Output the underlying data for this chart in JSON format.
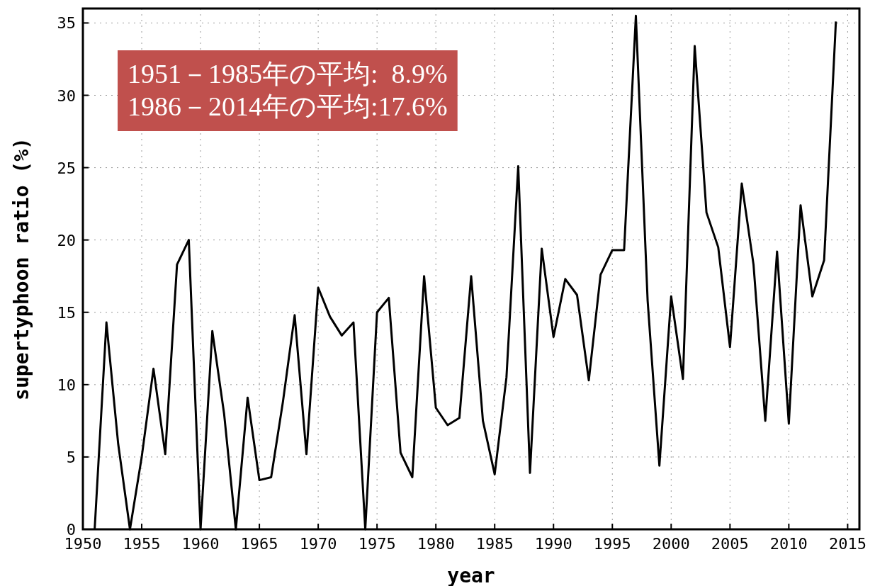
{
  "chart_data": {
    "type": "line",
    "xlabel": "year",
    "ylabel": "supertyphoon ratio (%)",
    "x": [
      1951,
      1952,
      1953,
      1954,
      1955,
      1956,
      1957,
      1958,
      1959,
      1960,
      1961,
      1962,
      1963,
      1964,
      1965,
      1966,
      1967,
      1968,
      1969,
      1970,
      1971,
      1972,
      1973,
      1974,
      1975,
      1976,
      1977,
      1978,
      1979,
      1980,
      1981,
      1982,
      1983,
      1984,
      1985,
      1986,
      1987,
      1988,
      1989,
      1990,
      1991,
      1992,
      1993,
      1994,
      1995,
      1996,
      1997,
      1998,
      1999,
      2000,
      2001,
      2002,
      2003,
      2004,
      2005,
      2006,
      2007,
      2008,
      2009,
      2010,
      2011,
      2012,
      2013,
      2014
    ],
    "values": [
      0,
      14.3,
      5.9,
      0,
      5.0,
      11.1,
      5.2,
      18.3,
      20.0,
      0,
      13.7,
      8.0,
      0,
      9.1,
      3.4,
      3.6,
      8.8,
      14.8,
      5.2,
      16.7,
      14.7,
      13.4,
      14.3,
      0,
      15.0,
      16.0,
      5.3,
      3.6,
      17.5,
      8.4,
      7.2,
      7.7,
      17.5,
      7.5,
      3.8,
      10.5,
      25.1,
      3.9,
      19.4,
      13.3,
      17.3,
      16.2,
      10.3,
      17.6,
      19.3,
      19.3,
      35.5,
      15.8,
      4.4,
      16.1,
      10.4,
      33.4,
      21.9,
      19.5,
      12.6,
      23.9,
      18.3,
      7.5,
      19.2,
      7.3,
      22.4,
      16.1,
      18.6,
      35.1
    ],
    "color": "#000000",
    "line_style": "solid",
    "xlim": [
      1950,
      2016
    ],
    "ylim": [
      0,
      36
    ],
    "xticks": [
      1950,
      1955,
      1960,
      1965,
      1970,
      1975,
      1980,
      1985,
      1990,
      1995,
      2000,
      2005,
      2010,
      2015
    ],
    "yticks": [
      0,
      5,
      10,
      15,
      20,
      25,
      30,
      35
    ],
    "grid": true,
    "annotations": [
      "1951－1985年の平均:  8.9%",
      "1986－2014年の平均:17.6%"
    ]
  }
}
